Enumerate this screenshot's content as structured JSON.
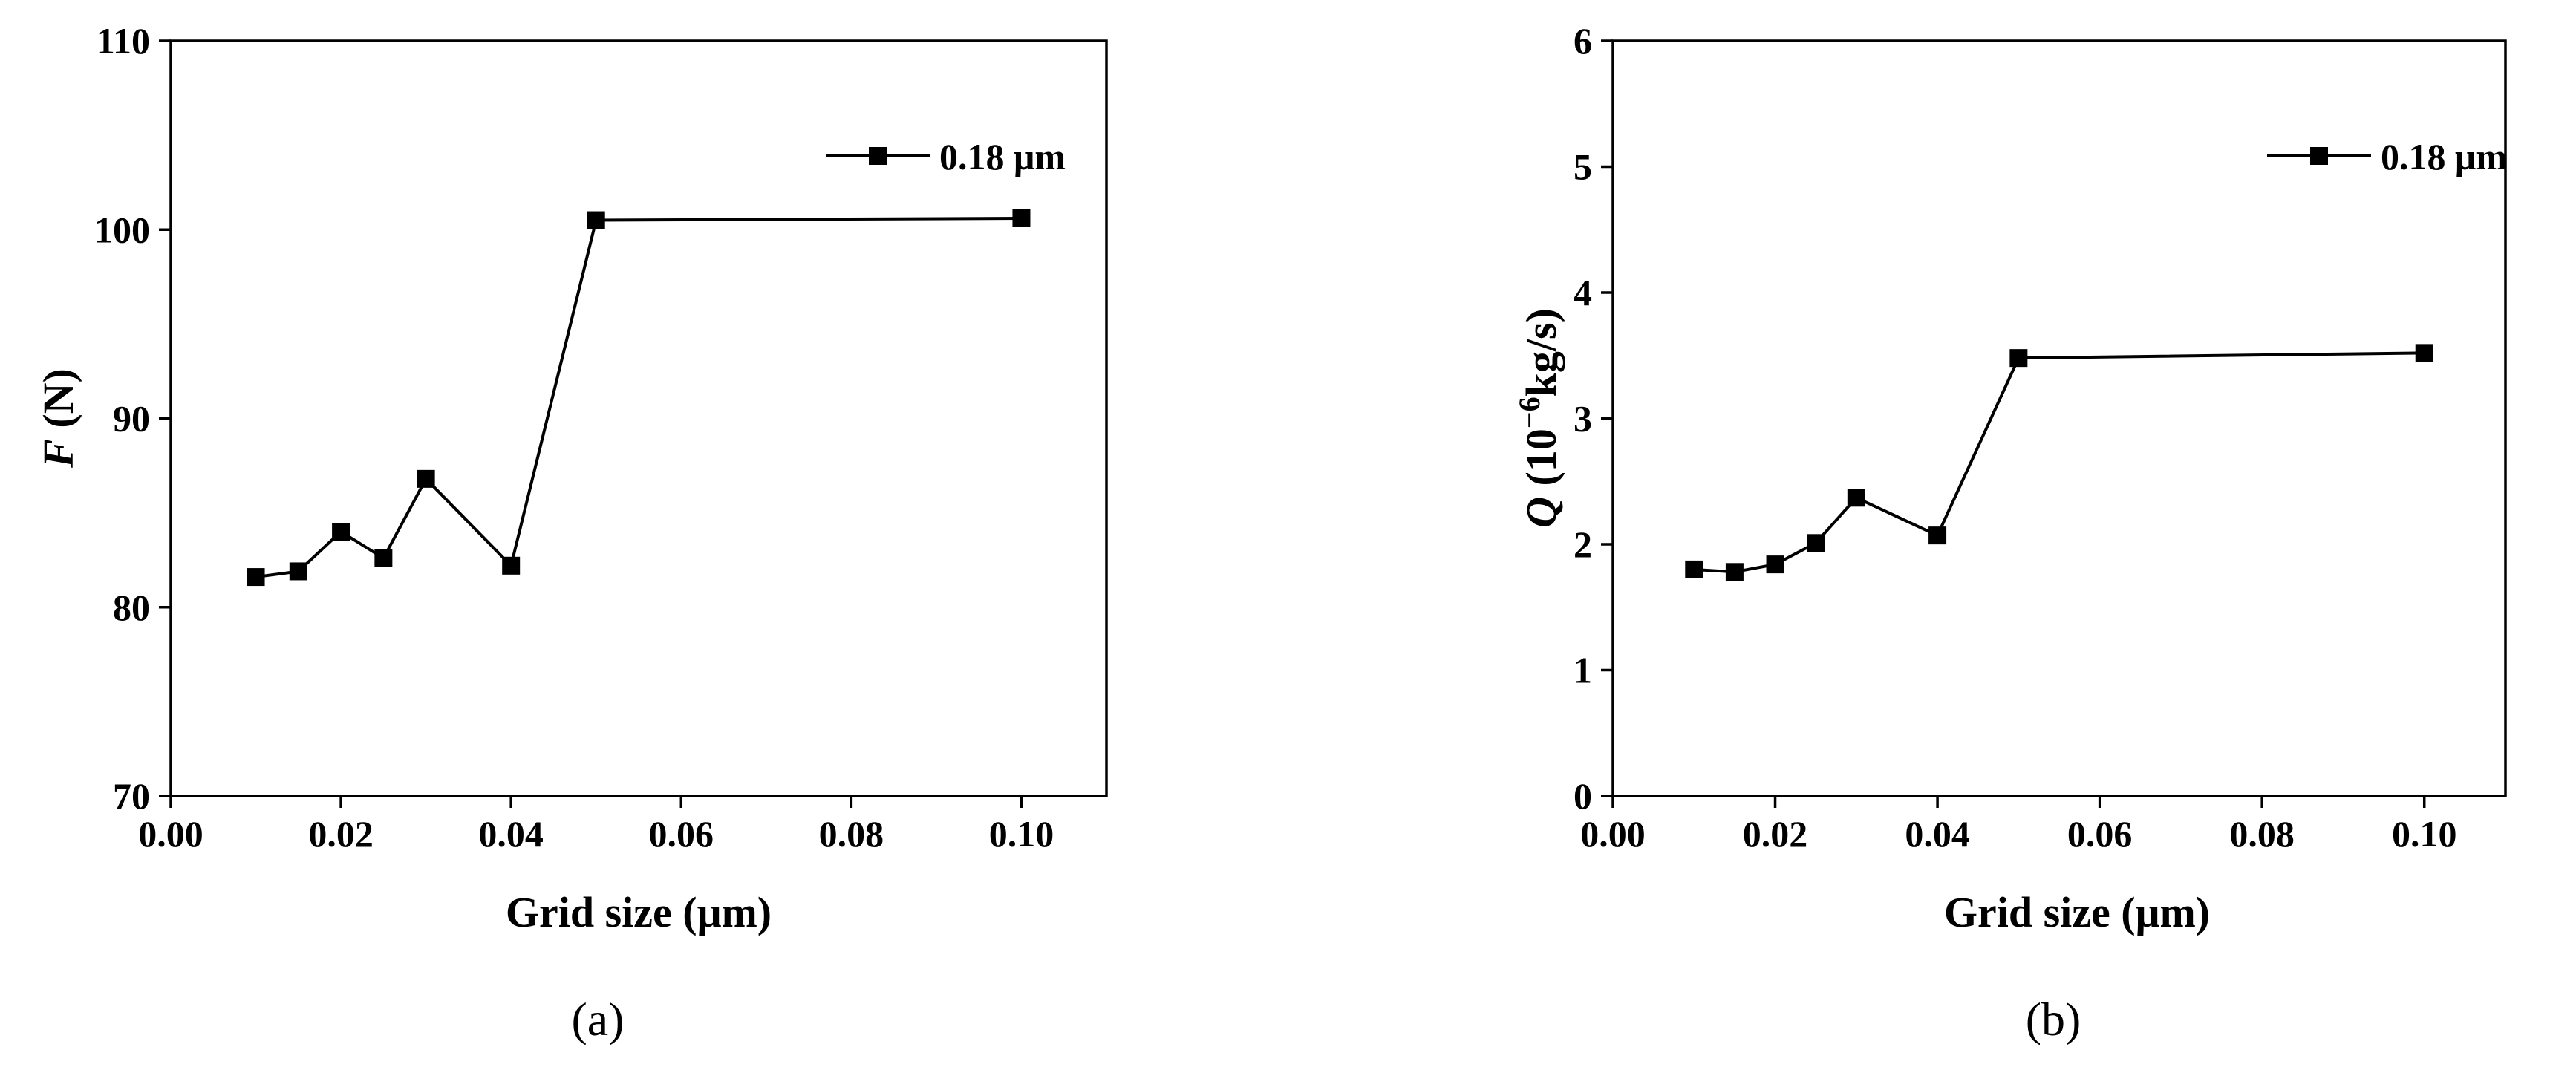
{
  "chart_data": [
    {
      "type": "line",
      "panel_label": "a",
      "xlabel": "Grid size (μm)",
      "ylabel": {
        "variable": "F",
        "unit": " (N)"
      },
      "xlim": [
        0.0,
        0.11
      ],
      "ylim": [
        70,
        110
      ],
      "xticks": [
        0.0,
        0.02,
        0.04,
        0.06,
        0.08,
        0.1
      ],
      "xtick_labels": [
        "0.00",
        "0.02",
        "0.04",
        "0.06",
        "0.08",
        "0.10"
      ],
      "yticks": [
        70,
        80,
        90,
        100,
        110
      ],
      "ytick_labels": [
        "70",
        "80",
        "90",
        "100",
        "110"
      ],
      "grid": false,
      "legend_position": "top-right",
      "series": [
        {
          "name": "0.18 μm",
          "marker": "square",
          "color": "#000000",
          "x": [
            0.01,
            0.015,
            0.02,
            0.025,
            0.03,
            0.04,
            0.05,
            0.1
          ],
          "y": [
            81.6,
            81.9,
            84.0,
            82.6,
            86.8,
            82.2,
            100.5,
            100.6
          ]
        }
      ]
    },
    {
      "type": "line",
      "panel_label": "b",
      "xlabel": "Grid size (μm)",
      "ylabel": {
        "variable": "Q",
        "open": " (10",
        "exponent": "−6",
        "unit": "kg/s)"
      },
      "xlim": [
        0.0,
        0.11
      ],
      "ylim": [
        0,
        6
      ],
      "xticks": [
        0.0,
        0.02,
        0.04,
        0.06,
        0.08,
        0.1
      ],
      "xtick_labels": [
        "0.00",
        "0.02",
        "0.04",
        "0.06",
        "0.08",
        "0.10"
      ],
      "yticks": [
        0,
        1,
        2,
        3,
        4,
        5,
        6
      ],
      "ytick_labels": [
        "0",
        "1",
        "2",
        "3",
        "4",
        "5",
        "6"
      ],
      "grid": false,
      "legend_position": "top-right",
      "series": [
        {
          "name": "0.18 μm",
          "marker": "square",
          "color": "#000000",
          "x": [
            0.01,
            0.015,
            0.02,
            0.025,
            0.03,
            0.04,
            0.05,
            0.1
          ],
          "y": [
            1.8,
            1.78,
            1.84,
            2.01,
            2.37,
            2.07,
            3.48,
            3.52
          ]
        }
      ]
    }
  ],
  "captions": {
    "a": "(a)",
    "b": "(b)"
  }
}
